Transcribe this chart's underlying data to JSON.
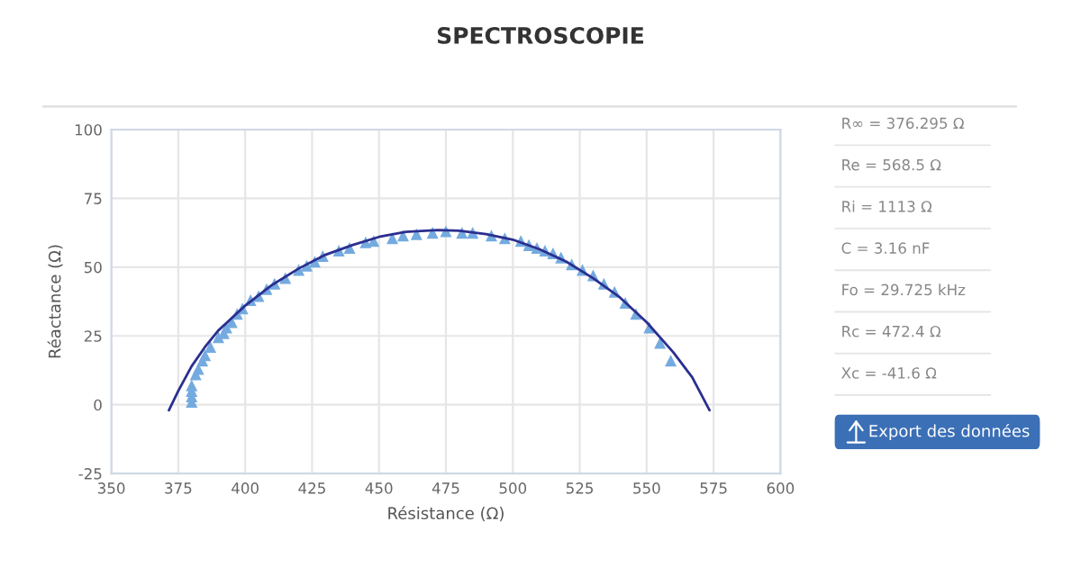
{
  "chart_data": [
    {
      "type": "scatter",
      "title": "SPECTROSCOPIE",
      "xlabel": "Résistance (Ω)",
      "ylabel": "Réactance (Ω)",
      "xlim": [
        350,
        600
      ],
      "xticks": [
        350,
        375,
        400,
        425,
        450,
        475,
        500,
        525,
        550,
        575,
        600
      ],
      "ylim": [
        -25,
        100
      ],
      "yticks": [
        -25,
        0,
        25,
        50,
        75,
        100
      ],
      "grid": true,
      "series": [
        {
          "type": "scatter",
          "marker": "triangle",
          "color": "#74aadf",
          "x": [
            380,
            380,
            380,
            380,
            381.5,
            382.5,
            384,
            385,
            387,
            390,
            392,
            393,
            395,
            397,
            399,
            402,
            405,
            408,
            411,
            415,
            420,
            423,
            426,
            429,
            435,
            439,
            445,
            448,
            455,
            459,
            464,
            470,
            475,
            481,
            485,
            492,
            497,
            503,
            506,
            509,
            512,
            515,
            518,
            522,
            526,
            530,
            534,
            538,
            542,
            546,
            551,
            555,
            559
          ],
          "values": [
            1,
            3,
            5,
            7,
            11,
            13,
            16,
            18,
            21,
            24.5,
            26,
            28,
            30,
            33,
            35,
            38,
            39.5,
            42,
            44,
            46,
            49,
            50.5,
            52,
            54,
            56,
            57,
            59,
            59.5,
            60.5,
            61.5,
            62,
            62.5,
            63,
            62.5,
            62.5,
            61.5,
            60.5,
            59.5,
            58,
            57,
            56,
            55,
            53.5,
            51,
            49,
            47,
            44,
            41,
            37,
            33,
            28,
            22.5,
            16
          ]
        },
        {
          "type": "line",
          "marker": "none",
          "line_style": "solid",
          "color": "#2b2f8f",
          "x": [
            371.5,
            375,
            380,
            385,
            390,
            400,
            410,
            420,
            430,
            440,
            450,
            460,
            472,
            480,
            490,
            500,
            510,
            520,
            530,
            540,
            550,
            560,
            567,
            573.5
          ],
          "values": [
            -2,
            5,
            14,
            21,
            27,
            36,
            43.5,
            49.5,
            54.5,
            58,
            61,
            62.8,
            63.5,
            63.2,
            62,
            60,
            56.5,
            52,
            46,
            39,
            30,
            19,
            10,
            -2
          ]
        }
      ]
    },
    {
      "type": "other",
      "annotations": [
        "R∞ = 376.295 Ω",
        "Re = 568.5 Ω",
        "Ri = 1113 Ω",
        "C = 3.16 nF",
        "Fo = 29.725 kHz",
        "Rc = 472.4 Ω",
        "Xc = -41.6 Ω",
        "Export des données"
      ]
    }
  ]
}
